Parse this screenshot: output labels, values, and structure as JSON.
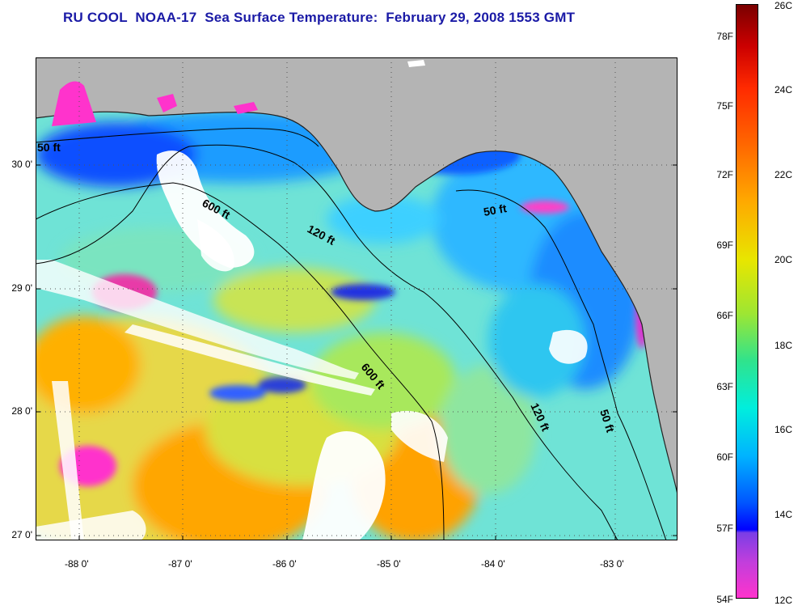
{
  "title": "RU COOL  NOAA-17  Sea Surface Temperature:  February 29, 2008 1553 GMT",
  "map": {
    "latitude_labels": [
      "30 0'",
      "29 0'",
      "28 0'",
      "27 0'"
    ],
    "longitude_labels": [
      "-88 0'",
      "-87 0'",
      "-86 0'",
      "-85 0'",
      "-84 0'",
      "-83 0'"
    ],
    "contour_labels": [
      "50 ft",
      "600 ft",
      "120 ft",
      "50 ft",
      "600 ft",
      "120 ft",
      "50 ft"
    ],
    "colors": {
      "land": "#b4b4b4",
      "cloud": "#ffffff",
      "contour": "#000000",
      "title": "#1a1aa6"
    }
  },
  "colorbar": {
    "fahrenheit_labels": [
      "78F",
      "75F",
      "72F",
      "69F",
      "66F",
      "63F",
      "60F",
      "57F",
      "54F"
    ],
    "celsius_labels": [
      "26C",
      "24C",
      "22C",
      "20C",
      "18C",
      "16C",
      "14C",
      "12C"
    ],
    "range_c": [
      12,
      26
    ]
  }
}
